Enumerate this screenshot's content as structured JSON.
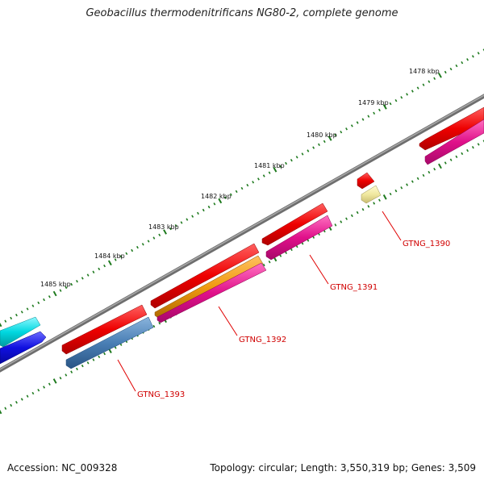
{
  "title": "Geobacillus thermodenitrificans NG80-2, complete genome",
  "footer": {
    "accession": "Accession: NC_009328",
    "summary": "Topology: circular; Length: 3,550,319 bp; Genes: 3,509"
  },
  "kbp_labels": [
    "1478 kbp",
    "1479 kbp",
    "1480 kbp",
    "1481 kbp",
    "1482 kbp",
    "1483 kbp",
    "1484 kbp",
    "1485 kbp"
  ],
  "gene_labels": [
    "GTNG_1390",
    "GTNG_1391",
    "GTNG_1392",
    "GTNG_1393"
  ],
  "colors": {
    "backbone": "#7a7a7a",
    "tick": "#1e7a1e",
    "gene_label": "#d00000",
    "red": "#ee0000",
    "pink": "#e0108a",
    "orange": "#f09a10",
    "steel_blue": "#4a7fb5",
    "pale_yellow": "#f0e8a0",
    "cyan": "#00d8e0",
    "blue": "#1010e0"
  }
}
